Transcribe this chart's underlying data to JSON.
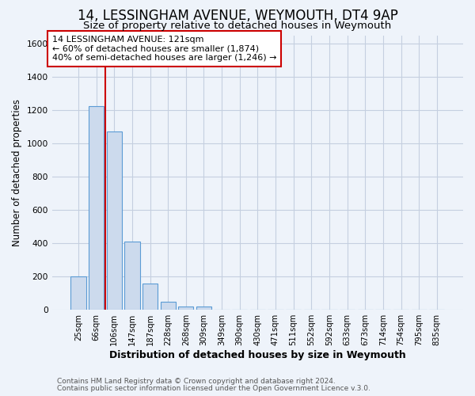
{
  "title": "14, LESSINGHAM AVENUE, WEYMOUTH, DT4 9AP",
  "subtitle": "Size of property relative to detached houses in Weymouth",
  "xlabel": "Distribution of detached houses by size in Weymouth",
  "ylabel": "Number of detached properties",
  "bar_labels": [
    "25sqm",
    "66sqm",
    "106sqm",
    "147sqm",
    "187sqm",
    "228sqm",
    "268sqm",
    "309sqm",
    "349sqm",
    "390sqm",
    "430sqm",
    "471sqm",
    "511sqm",
    "552sqm",
    "592sqm",
    "633sqm",
    "673sqm",
    "714sqm",
    "754sqm",
    "795sqm",
    "835sqm"
  ],
  "bar_values": [
    200,
    1225,
    1075,
    410,
    160,
    50,
    20,
    20,
    0,
    0,
    0,
    0,
    0,
    0,
    0,
    0,
    0,
    0,
    0,
    0,
    0
  ],
  "bar_color": "#ccdaed",
  "bar_edge_color": "#5b9bd5",
  "background_color": "#eef3fa",
  "grid_color": "#c5cfe0",
  "vline_color": "#cc0000",
  "vline_x": 1.5,
  "ylim": [
    0,
    1650
  ],
  "yticks": [
    0,
    200,
    400,
    600,
    800,
    1000,
    1200,
    1400,
    1600
  ],
  "annotation_text": "14 LESSINGHAM AVENUE: 121sqm\n← 60% of detached houses are smaller (1,874)\n40% of semi-detached houses are larger (1,246) →",
  "annotation_box_color": "#cc0000",
  "footer_line1": "Contains HM Land Registry data © Crown copyright and database right 2024.",
  "footer_line2": "Contains public sector information licensed under the Open Government Licence v.3.0.",
  "title_fontsize": 12,
  "subtitle_fontsize": 9.5,
  "tick_fontsize": 7.2,
  "ylabel_fontsize": 8.5,
  "xlabel_fontsize": 9,
  "footer_fontsize": 6.5,
  "annotation_fontsize": 8.0
}
